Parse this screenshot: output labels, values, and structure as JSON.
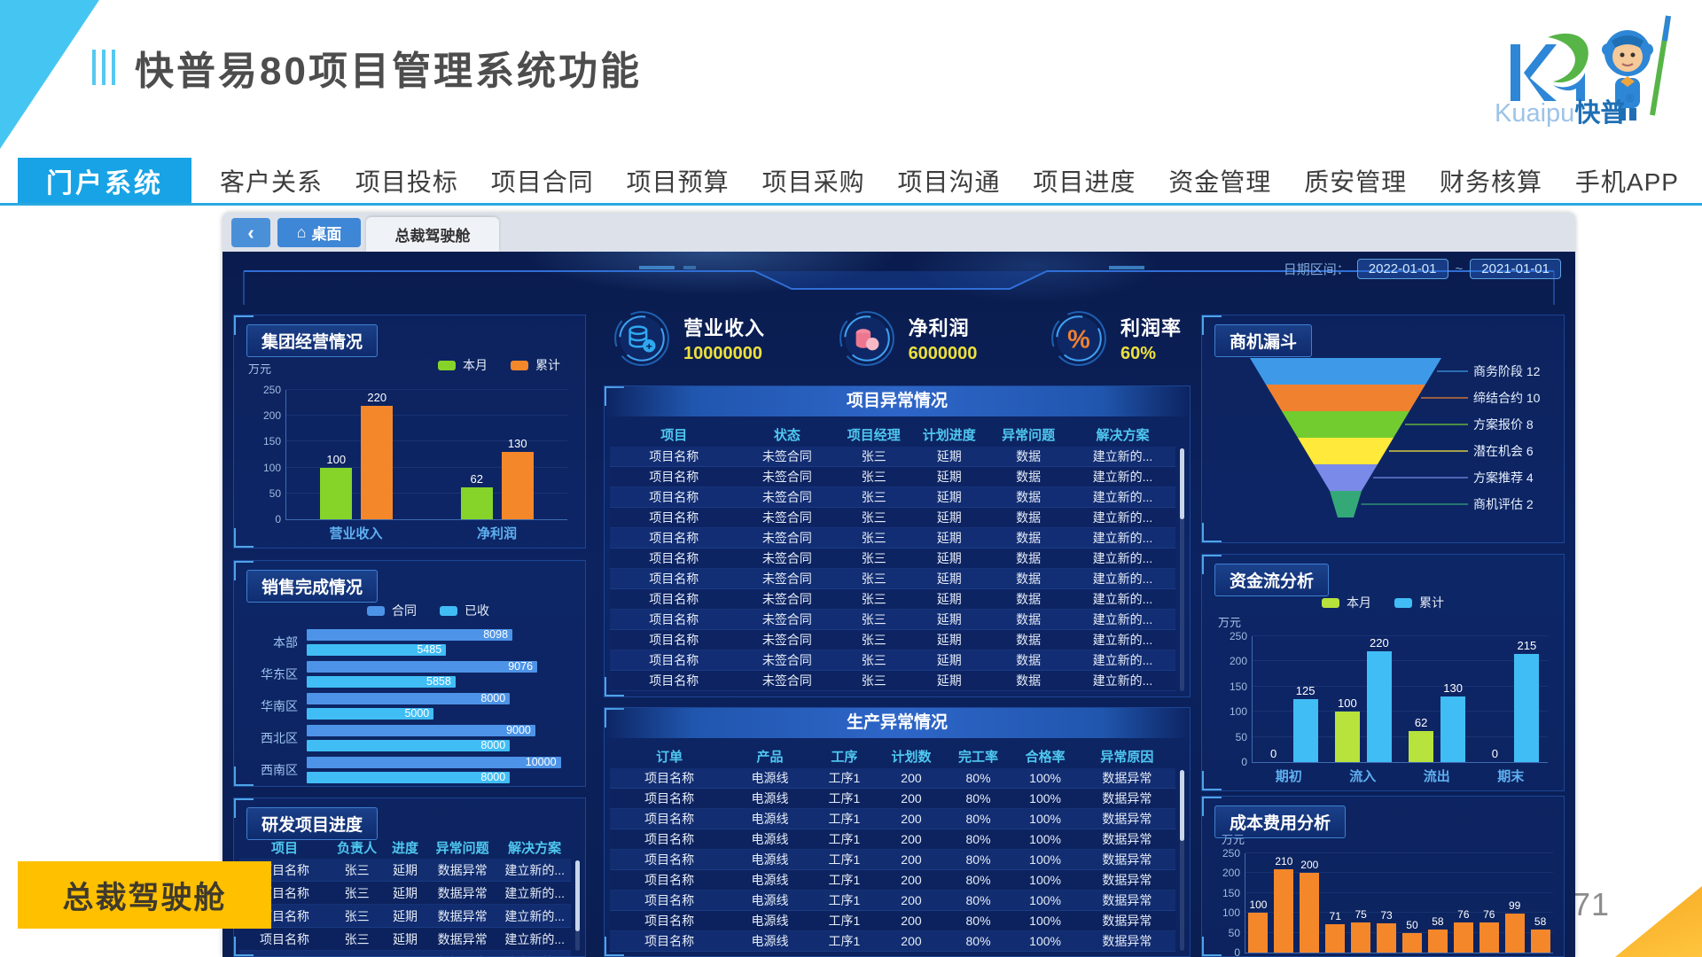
{
  "slide": {
    "title": "快普易80项目管理系统功能",
    "page_number": "8/71",
    "corner_label": "总裁驾驶舱",
    "logo": {
      "brand_en": "Kuaipu",
      "brand_cn": "快普",
      "registered": "®"
    }
  },
  "nav": {
    "active": "门户系统",
    "items": [
      "客户关系",
      "项目投标",
      "项目合同",
      "项目预算",
      "项目采购",
      "项目沟通",
      "项目进度",
      "资金管理",
      "质安管理",
      "财务核算",
      "手机APP"
    ]
  },
  "dashboard": {
    "tabs": {
      "back": "‹",
      "home": "桌面",
      "active": "总裁驾驶舱"
    },
    "date_range": {
      "label": "日期区间：",
      "from": "2022-01-01",
      "separator": "~",
      "to": "2021-01-01"
    },
    "kpis": [
      {
        "label": "营业收入",
        "value": "10000000",
        "icon": "coins-plus-icon",
        "icon_color": "#2fa8f0"
      },
      {
        "label": "净利润",
        "value": "6000000",
        "icon": "coins-pink-icon",
        "icon_color": "#f07e9a"
      },
      {
        "label": "利润率",
        "value": "60%",
        "icon": "percent-icon",
        "icon_color": "#f08033"
      }
    ],
    "panels": {
      "group_operation": {
        "type": "bar",
        "title": "集团经营情况",
        "unit": "万元",
        "legend": [
          {
            "label": "本月",
            "color": "#86d42a"
          },
          {
            "label": "累计",
            "color": "#f5872b"
          }
        ],
        "y_ticks": [
          250,
          200,
          150,
          100,
          50,
          0
        ],
        "ymax": 250,
        "categories": [
          "营业收入",
          "净利润"
        ],
        "series": [
          {
            "name": "本月",
            "values": [
              100,
              62
            ]
          },
          {
            "name": "累计",
            "values": [
              220,
              130
            ]
          }
        ]
      },
      "sales_completion": {
        "type": "hbar",
        "title": "销售完成情况",
        "legend": [
          {
            "label": "合同",
            "color": "#4d94e8"
          },
          {
            "label": "已收",
            "color": "#41bdf5"
          }
        ],
        "max": 10400,
        "rows": [
          {
            "label": "本部",
            "contract": 8098,
            "received": 5485
          },
          {
            "label": "华东区",
            "contract": 9076,
            "received": 5858
          },
          {
            "label": "华南区",
            "contract": 8000,
            "received": 5000
          },
          {
            "label": "西北区",
            "contract": 9000,
            "received": 8000
          },
          {
            "label": "西南区",
            "contract": 10000,
            "received": 8000
          }
        ]
      },
      "rd_progress": {
        "type": "table",
        "title": "研发项目进度",
        "headers": [
          "项目",
          "负责人",
          "进度",
          "异常问题",
          "解决方案"
        ],
        "rows": [
          [
            "项目名称",
            "张三",
            "延期",
            "数据异常",
            "建立新的..."
          ],
          [
            "项目名称",
            "张三",
            "延期",
            "数据异常",
            "建立新的..."
          ],
          [
            "项目名称",
            "张三",
            "延期",
            "数据异常",
            "建立新的..."
          ],
          [
            "项目名称",
            "张三",
            "延期",
            "数据异常",
            "建立新的..."
          ],
          [
            "项目名称",
            "张三",
            "延期",
            "数据异常",
            "建立新的..."
          ]
        ]
      },
      "project_abnormal": {
        "type": "table",
        "title": "项目异常情况",
        "headers": [
          "项目",
          "状态",
          "项目经理",
          "计划进度",
          "异常问题",
          "解决方案"
        ],
        "rows": [
          [
            "项目名称",
            "未签合同",
            "张三",
            "延期",
            "数据",
            "建立新的..."
          ],
          [
            "项目名称",
            "未签合同",
            "张三",
            "延期",
            "数据",
            "建立新的..."
          ],
          [
            "项目名称",
            "未签合同",
            "张三",
            "延期",
            "数据",
            "建立新的..."
          ],
          [
            "项目名称",
            "未签合同",
            "张三",
            "延期",
            "数据",
            "建立新的..."
          ],
          [
            "项目名称",
            "未签合同",
            "张三",
            "延期",
            "数据",
            "建立新的..."
          ],
          [
            "项目名称",
            "未签合同",
            "张三",
            "延期",
            "数据",
            "建立新的..."
          ],
          [
            "项目名称",
            "未签合同",
            "张三",
            "延期",
            "数据",
            "建立新的..."
          ],
          [
            "项目名称",
            "未签合同",
            "张三",
            "延期",
            "数据",
            "建立新的..."
          ],
          [
            "项目名称",
            "未签合同",
            "张三",
            "延期",
            "数据",
            "建立新的..."
          ],
          [
            "项目名称",
            "未签合同",
            "张三",
            "延期",
            "数据",
            "建立新的..."
          ],
          [
            "项目名称",
            "未签合同",
            "张三",
            "延期",
            "数据",
            "建立新的..."
          ],
          [
            "项目名称",
            "未签合同",
            "张三",
            "延期",
            "数据",
            "建立新的..."
          ]
        ]
      },
      "production_abnormal": {
        "type": "table",
        "title": "生产异常情况",
        "headers": [
          "订单",
          "产品",
          "工序",
          "计划数",
          "完工率",
          "合格率",
          "异常原因"
        ],
        "rows": [
          [
            "项目名称",
            "电源线",
            "工序1",
            "200",
            "80%",
            "100%",
            "数据异常"
          ],
          [
            "项目名称",
            "电源线",
            "工序1",
            "200",
            "80%",
            "100%",
            "数据异常"
          ],
          [
            "项目名称",
            "电源线",
            "工序1",
            "200",
            "80%",
            "100%",
            "数据异常"
          ],
          [
            "项目名称",
            "电源线",
            "工序1",
            "200",
            "80%",
            "100%",
            "数据异常"
          ],
          [
            "项目名称",
            "电源线",
            "工序1",
            "200",
            "80%",
            "100%",
            "数据异常"
          ],
          [
            "项目名称",
            "电源线",
            "工序1",
            "200",
            "80%",
            "100%",
            "数据异常"
          ],
          [
            "项目名称",
            "电源线",
            "工序1",
            "200",
            "80%",
            "100%",
            "数据异常"
          ],
          [
            "项目名称",
            "电源线",
            "工序1",
            "200",
            "80%",
            "100%",
            "数据异常"
          ],
          [
            "项目名称",
            "电源线",
            "工序1",
            "200",
            "80%",
            "100%",
            "数据异常"
          ]
        ]
      },
      "opportunity_funnel": {
        "type": "funnel",
        "title": "商机漏斗",
        "stages": [
          {
            "label": "商务阶段",
            "value": 12,
            "color": "#3e9ae8"
          },
          {
            "label": "缔结合约",
            "value": 10,
            "color": "#f0822f"
          },
          {
            "label": "方案报价",
            "value": 8,
            "color": "#72cc30"
          },
          {
            "label": "潜在机会",
            "value": 6,
            "color": "#ffe93a"
          },
          {
            "label": "方案推荐",
            "value": 4,
            "color": "#7a8ae8"
          },
          {
            "label": "商机评估",
            "value": 2,
            "color": "#35a878"
          }
        ]
      },
      "cash_flow": {
        "type": "bar",
        "title": "资金流分析",
        "unit": "万元",
        "legend": [
          {
            "label": "本月",
            "color": "#b8e23c"
          },
          {
            "label": "累计",
            "color": "#41bdf5"
          }
        ],
        "y_ticks": [
          250,
          200,
          150,
          100,
          50,
          0
        ],
        "ymax": 250,
        "categories": [
          "期初",
          "流入",
          "流出",
          "期末"
        ],
        "series": [
          {
            "name": "本月",
            "values": [
              0,
              100,
              62,
              0
            ]
          },
          {
            "name": "累计",
            "values": [
              125,
              220,
              130,
              215
            ]
          }
        ]
      },
      "cost_analysis": {
        "type": "bar",
        "title": "成本费用分析",
        "unit": "万元",
        "color": "#f5872b",
        "y_ticks": [
          250,
          200,
          150,
          100,
          50,
          0
        ],
        "ymax": 250,
        "values": [
          100,
          210,
          200,
          71,
          75,
          73,
          50,
          58,
          76,
          76,
          99,
          58
        ]
      }
    }
  }
}
